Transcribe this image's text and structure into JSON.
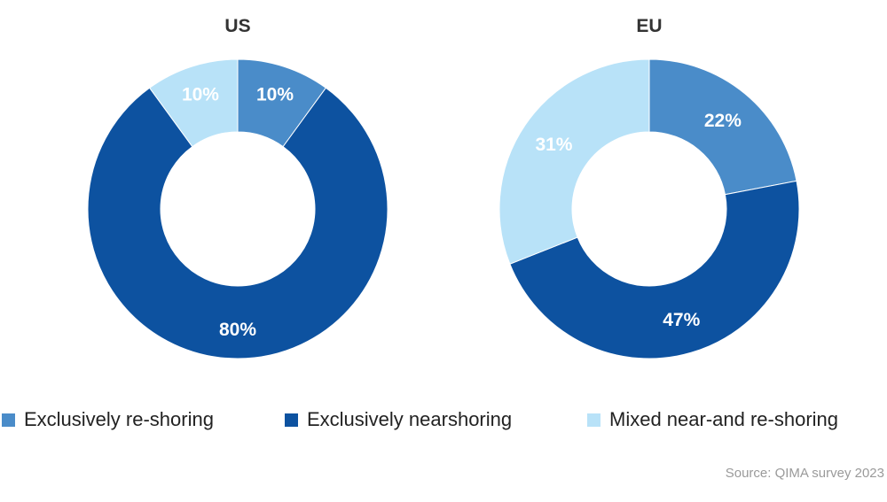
{
  "chart_data": [
    {
      "type": "pie",
      "title": "US",
      "donut": true,
      "categories": [
        "Exclusively re-shoring",
        "Exclusively nearshoring",
        "Mixed near-and re-shoring"
      ],
      "values": [
        10,
        80,
        10
      ],
      "labels": [
        "10%",
        "80%",
        "10%"
      ]
    },
    {
      "type": "pie",
      "title": "EU",
      "donut": true,
      "categories": [
        "Exclusively re-shoring",
        "Exclusively nearshoring",
        "Mixed near-and re-shoring"
      ],
      "values": [
        22,
        47,
        31
      ],
      "labels": [
        "22%",
        "47%",
        "31%"
      ]
    }
  ],
  "legend": {
    "position": "bottom",
    "items": [
      {
        "label": "Exclusively re-shoring",
        "color": "#4a8cc9"
      },
      {
        "label": "Exclusively nearshoring",
        "color": "#0d52a0"
      },
      {
        "label": "Mixed near-and re-shoring",
        "color": "#b8e2f8"
      }
    ]
  },
  "colors": [
    "#4a8cc9",
    "#0d52a0",
    "#b8e2f8"
  ],
  "source": "Source: QIMA survey 2023"
}
